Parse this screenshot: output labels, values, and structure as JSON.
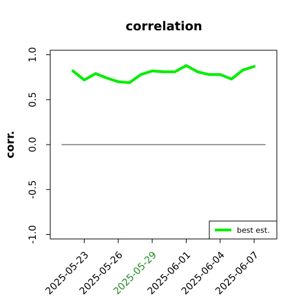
{
  "chart_data": {
    "type": "line",
    "title": "correlation",
    "xlabel": "",
    "ylabel": "corr.",
    "ylim": [
      -1.05,
      1.05
    ],
    "xlim": [
      "2025-05-20",
      "2025-06-09"
    ],
    "grid": false,
    "legend_position": "bottom-right",
    "yticks": [
      {
        "value": -1.0,
        "label": "-1.0"
      },
      {
        "value": -0.5,
        "label": "-0.5"
      },
      {
        "value": 0.0,
        "label": "0.0"
      },
      {
        "value": 0.5,
        "label": "0.5"
      },
      {
        "value": 1.0,
        "label": "1.0"
      }
    ],
    "xticks": [
      {
        "date": "2025-05-23",
        "label": "2025-05-23",
        "color": "#000000"
      },
      {
        "date": "2025-05-26",
        "label": "2025-05-26",
        "color": "#000000"
      },
      {
        "date": "2025-05-29",
        "label": "2025-05-29",
        "color": "#228b22"
      },
      {
        "date": "2025-06-01",
        "label": "2025-06-01",
        "color": "#000000"
      },
      {
        "date": "2025-06-04",
        "label": "2025-06-04",
        "color": "#000000"
      },
      {
        "date": "2025-06-07",
        "label": "2025-06-07",
        "color": "#000000"
      }
    ],
    "x": [
      "2025-05-22",
      "2025-05-23",
      "2025-05-24",
      "2025-05-25",
      "2025-05-26",
      "2025-05-27",
      "2025-05-28",
      "2025-05-29",
      "2025-05-30",
      "2025-05-31",
      "2025-06-01",
      "2025-06-02",
      "2025-06-03",
      "2025-06-04",
      "2025-06-05",
      "2025-06-06",
      "2025-06-07"
    ],
    "series": [
      {
        "name": "best est.",
        "color": "#00ee00",
        "values": [
          0.82,
          0.72,
          0.79,
          0.74,
          0.7,
          0.69,
          0.78,
          0.82,
          0.81,
          0.81,
          0.88,
          0.81,
          0.78,
          0.78,
          0.73,
          0.83,
          0.87
        ]
      }
    ],
    "reference_line": {
      "y": 0.0,
      "x_start": "2025-05-21",
      "x_end": "2025-06-08",
      "color": "#606060"
    }
  }
}
